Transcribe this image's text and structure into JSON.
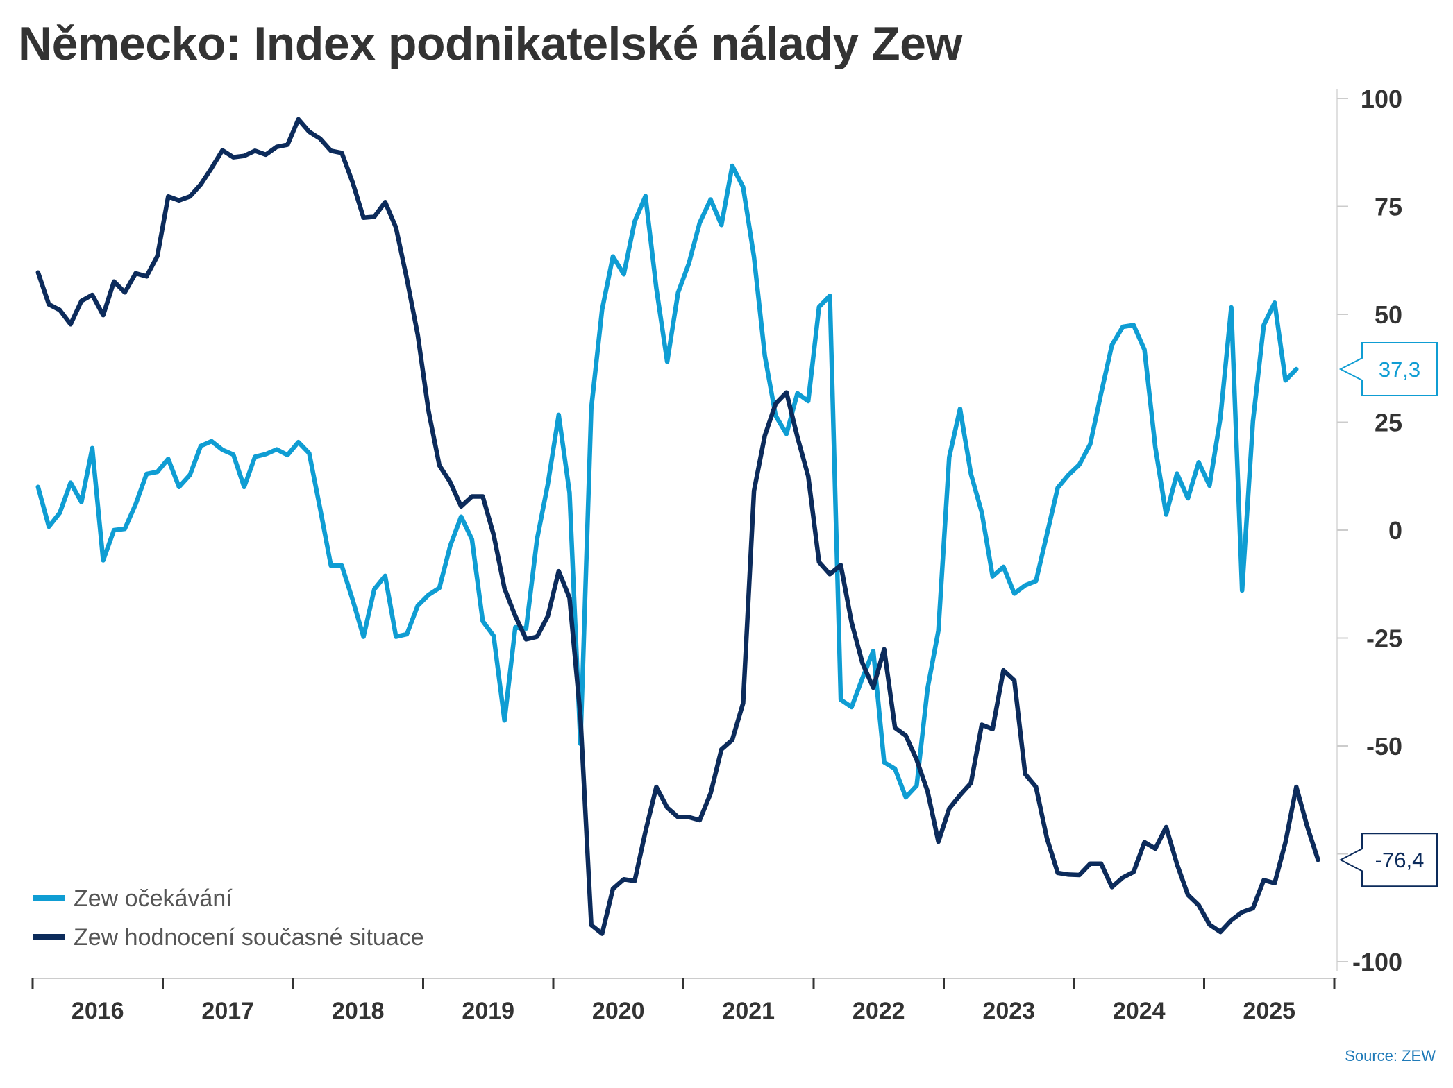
{
  "chart_data": {
    "type": "line",
    "title": "Německo: Index podnikatelské nálady Zew",
    "source": "Source: ZEW",
    "ylim": [
      -100,
      100
    ],
    "yticks": [
      100,
      75,
      50,
      25,
      0,
      -25,
      -50,
      -75,
      -100
    ],
    "ytick_labels": [
      "100",
      "75",
      "50",
      "25",
      "0",
      "-25",
      "-50",
      "-75",
      "-100"
    ],
    "y_axis_side": "right",
    "x_start": "2016-01",
    "x_end": "2025-12",
    "xtick_labels": [
      "2016",
      "2017",
      "2018",
      "2019",
      "2020",
      "2021",
      "2022",
      "2023",
      "2024",
      "2025"
    ],
    "grid": false,
    "legend_position": "bottom-left",
    "series": [
      {
        "name": "Zew očekávání",
        "color": "#0f9dd3",
        "start": "2016-01",
        "last_value_label": "37,3",
        "values": [
          10,
          0.8,
          4,
          11,
          6.5,
          19,
          -7,
          0,
          0.3,
          6,
          13,
          13.5,
          16.5,
          10,
          12.8,
          19.5,
          20.6,
          18.6,
          17.5,
          10,
          17,
          17.6,
          18.7,
          17.4,
          20.4,
          17.8,
          5,
          -8.2,
          -8.2,
          -16.1,
          -24.7,
          -13.7,
          -10.6,
          -24.7,
          -24.1,
          -17.5,
          -15,
          -13.4,
          -3.6,
          3.1,
          -2.1,
          -21.1,
          -24.5,
          -44.1,
          -22.5,
          -22.8,
          -2.1,
          10.7,
          26.7,
          8.7,
          -49.5,
          28.2,
          51.1,
          63.4,
          59.3,
          71.5,
          77.4,
          56.1,
          39,
          55,
          61.8,
          71.2,
          76.6,
          70.7,
          84.4,
          79.5,
          63.3,
          40.4,
          26.5,
          22.3,
          31.7,
          29.9,
          51.7,
          54.3,
          -39.3,
          -41,
          -34.3,
          -28,
          -53.8,
          -55.3,
          -61.9,
          -59.2,
          -36.7,
          -23.3,
          16.9,
          28.1,
          13,
          4.1,
          -10.7,
          -8.5,
          -14.7,
          -12.8,
          -11.8,
          -1.1,
          9.8,
          12.8,
          15.2,
          19.9,
          31.7,
          42.9,
          47.1,
          47.5,
          41.8,
          19.2,
          3.6,
          13.1,
          7.4,
          15.7,
          10.3,
          26,
          51.6,
          -14,
          25.2,
          47.5,
          52.7,
          34.7,
          37.3
        ]
      },
      {
        "name": "Zew hodnocení současné situace",
        "color": "#0c2b5b",
        "start": "2016-01",
        "last_value_label": "-76,4",
        "values": [
          59.7,
          52.3,
          51,
          47.7,
          53.1,
          54.5,
          49.8,
          57.6,
          55.1,
          59.5,
          58.8,
          63.5,
          77.3,
          76.4,
          77.3,
          80.1,
          83.9,
          88,
          86.4,
          86.7,
          87.9,
          87,
          88.8,
          89.3,
          95.2,
          92.3,
          90.7,
          87.9,
          87.4,
          80.6,
          72.4,
          72.6,
          76,
          70.1,
          58.2,
          45.3,
          27.6,
          15,
          11.1,
          5.5,
          7.8,
          7.8,
          -1.1,
          -13.5,
          -19.9,
          -25.3,
          -24.7,
          -19.9,
          -9.5,
          -15.7,
          -43.1,
          -91.5,
          -93.5,
          -83.1,
          -80.9,
          -81.3,
          -69.8,
          -59.5,
          -64.3,
          -66.5,
          -66.5,
          -67.2,
          -61,
          -50.8,
          -48.6,
          -40.1,
          9.1,
          21.9,
          29.3,
          31.9,
          21.6,
          12.5,
          -7.4,
          -10.2,
          -8.1,
          -21.4,
          -30.8,
          -36.5,
          -27.6,
          -45.8,
          -47.6,
          -53.2,
          -60.5,
          -72.2,
          -64.5,
          -61.4,
          -58.6,
          -45.1,
          -46.1,
          -32.5,
          -34.8,
          -56.5,
          -59.5,
          -71.3,
          -79.4,
          -79.8,
          -79.9,
          -77.3,
          -77.3,
          -82.7,
          -80.5,
          -79.2,
          -72.3,
          -73.8,
          -68.8,
          -77.4,
          -84.5,
          -86.9,
          -91.4,
          -93.1,
          -90.4,
          -88.5,
          -87.6,
          -81.1,
          -81.8,
          -72.3,
          -59.5,
          -68.6,
          -76.4
        ]
      }
    ]
  }
}
